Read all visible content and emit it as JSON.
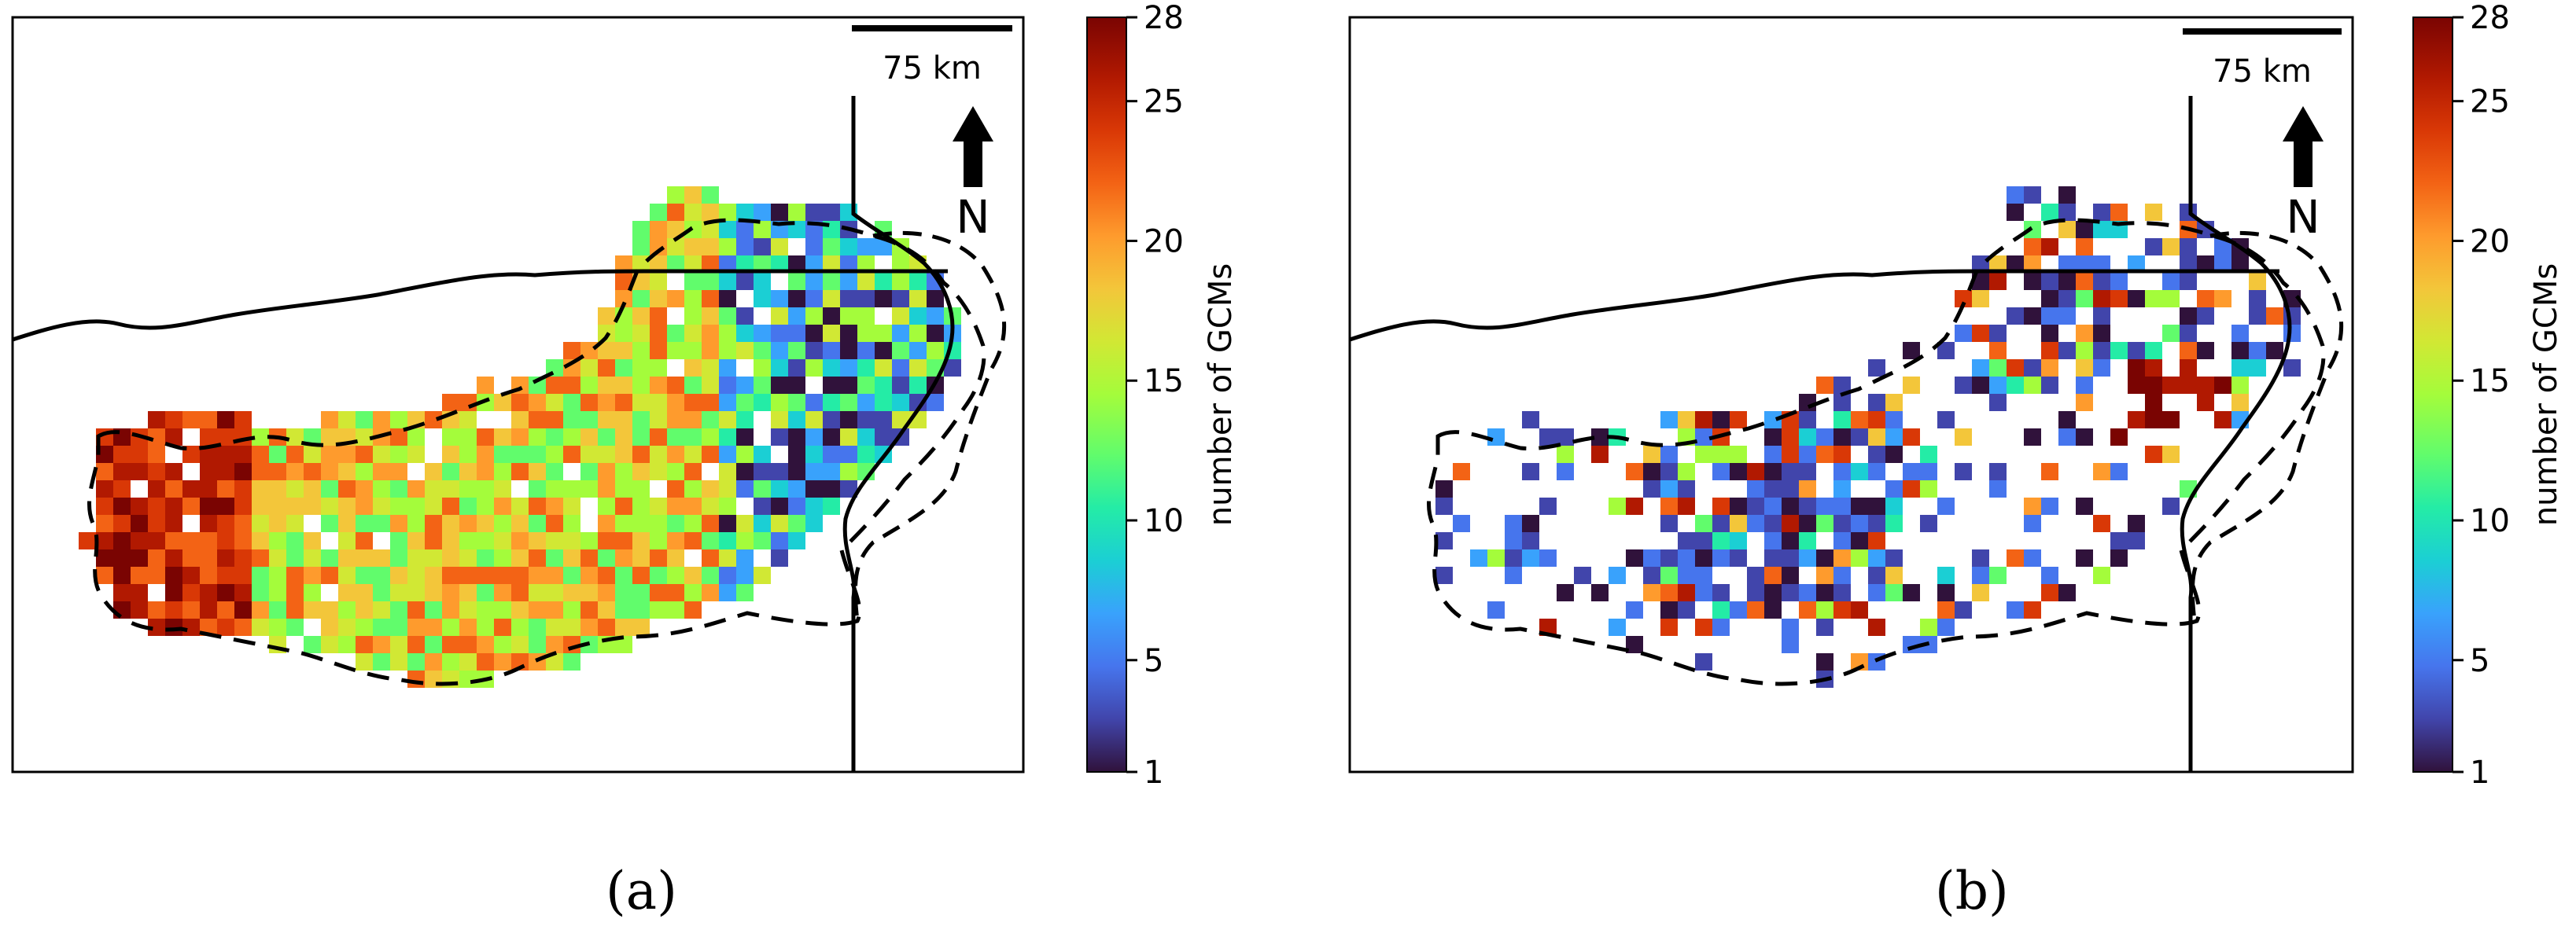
{
  "figure": {
    "panels": [
      {
        "id": "a",
        "caption": "(a)",
        "scale_bar_label": "75 km",
        "north_label": "N",
        "colorbar": {
          "label": "number of GCMs",
          "ticks": [
            "1",
            "5",
            "10",
            "15",
            "20",
            "25",
            "28"
          ],
          "tick_values": [
            1,
            5,
            10,
            15,
            20,
            25,
            28
          ],
          "range": [
            1,
            28
          ]
        },
        "map_description": "Dense grid of colored cells covering the whole basin; mostly orange/yellow-green with red on the west edge, blues/purples in the east"
      },
      {
        "id": "b",
        "caption": "(b)",
        "scale_bar_label": "75 km",
        "north_label": "N",
        "colorbar": {
          "label": "number of GCMs",
          "ticks": [
            "1",
            "5",
            "10",
            "15",
            "20",
            "25",
            "28"
          ],
          "tick_values": [
            1,
            5,
            10,
            15,
            20,
            25,
            28
          ],
          "range": [
            1,
            28
          ]
        },
        "map_description": "Sparse grid of colored cells, mostly dark blue/purple, with a dark-red cluster in the northeast"
      }
    ],
    "colormap": [
      "#30123b",
      "#4145ab",
      "#4675ed",
      "#39a2fc",
      "#1bcfd4",
      "#24eca6",
      "#61fc6c",
      "#a4fc3b",
      "#d1e834",
      "#f3c63a",
      "#fe9b2d",
      "#f36315",
      "#d93806",
      "#b11901",
      "#7a0402"
    ]
  }
}
